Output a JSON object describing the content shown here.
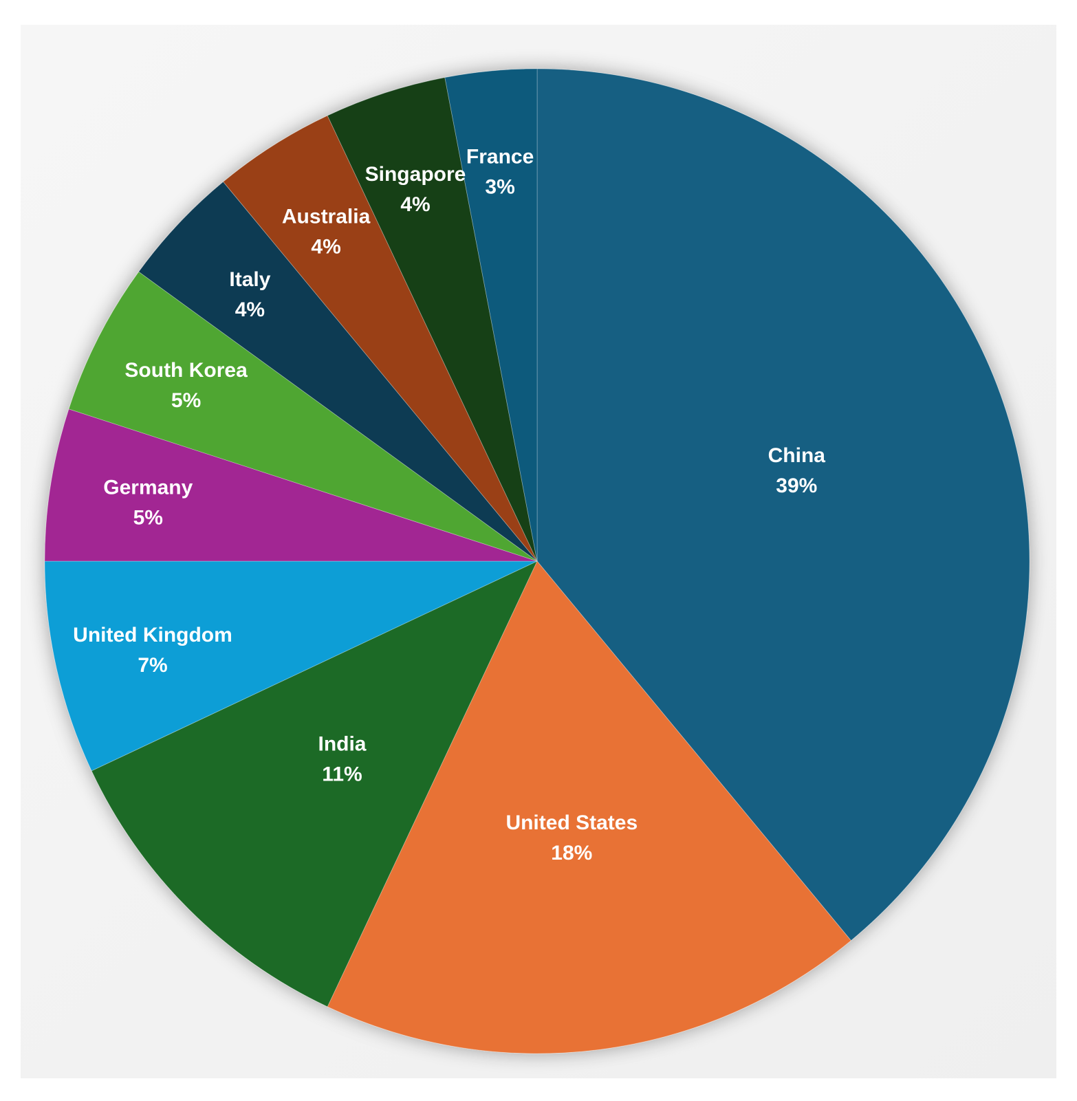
{
  "chart_data": {
    "type": "pie",
    "title": "",
    "start_angle_deg": 0,
    "direction": "clockwise",
    "legend": "none",
    "slices": [
      {
        "label": "China",
        "value": 39,
        "display": "39%",
        "color": "#175f82"
      },
      {
        "label": "United States",
        "value": 18,
        "display": "18%",
        "color": "#e87236"
      },
      {
        "label": "India",
        "value": 11,
        "display": "11%",
        "color": "#1b6a25"
      },
      {
        "label": "United Kingdom",
        "value": 7,
        "display": "7%",
        "color": "#119ed6"
      },
      {
        "label": "Germany",
        "value": 5,
        "display": "5%",
        "color": "#a22893"
      },
      {
        "label": "South Korea",
        "value": 5,
        "display": "5%",
        "color": "#4fa631"
      },
      {
        "label": "Italy",
        "value": 4,
        "display": "4%",
        "color": "#0e3a52"
      },
      {
        "label": "Australia",
        "value": 4,
        "display": "4%",
        "color": "#9a4112"
      },
      {
        "label": "Singapore",
        "value": 4,
        "display": "4%",
        "color": "#123f19"
      },
      {
        "label": "France",
        "value": 3,
        "display": "3%",
        "color": "#0d5a7c"
      }
    ]
  }
}
